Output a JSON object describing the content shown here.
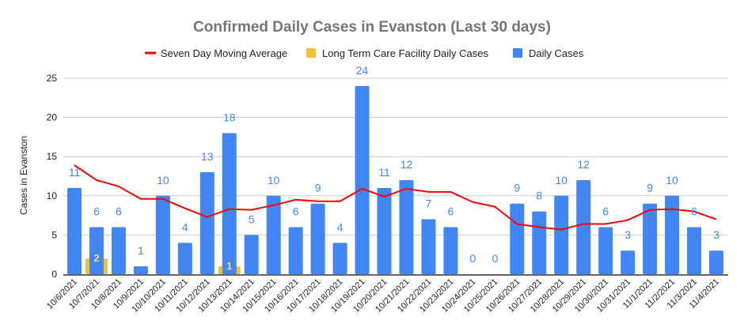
{
  "chart_data": {
    "type": "bar",
    "title": "Confirmed Daily Cases in Evanston (Last 30 days)",
    "xlabel": "",
    "ylabel": "Cases in Evanston",
    "ylim": [
      0,
      25
    ],
    "yticks": [
      "0",
      "5",
      "10",
      "15",
      "20",
      "25"
    ],
    "grid": true,
    "legend_position": "top",
    "categories": [
      "10/6/2021",
      "10/7/2021",
      "10/8/2021",
      "10/9/2021",
      "10/10/2021",
      "10/11/2021",
      "10/12/2021",
      "10/13/2021",
      "10/14/2021",
      "10/15/2021",
      "10/16/2021",
      "10/17/2021",
      "10/18/2021",
      "10/19/2021",
      "10/20/2021",
      "10/21/2021",
      "10/22/2021",
      "10/23/2021",
      "10/24/2021",
      "10/25/2021",
      "10/26/2021",
      "10/27/2021",
      "10/28/2021",
      "10/29/2021",
      "10/30/2021",
      "10/31/2021",
      "11/1/2021",
      "11/2/2021",
      "11/3/2021",
      "11/4/2021"
    ],
    "series": [
      {
        "name": "Seven Day Moving Average",
        "type": "line",
        "color": "#ff0000",
        "values": [
          13.9,
          12.0,
          11.2,
          9.6,
          9.6,
          8.4,
          7.3,
          8.3,
          8.2,
          8.8,
          9.5,
          9.3,
          9.3,
          10.9,
          9.9,
          10.9,
          10.5,
          10.5,
          9.2,
          8.6,
          6.4,
          6.0,
          5.7,
          6.4,
          6.4,
          6.9,
          8.2,
          8.3,
          8.0,
          7.0
        ]
      },
      {
        "name": "Long Term Care Facility Daily Cases",
        "type": "bar",
        "color": "#f1c232",
        "values": [
          null,
          2,
          null,
          null,
          null,
          null,
          null,
          1,
          null,
          null,
          null,
          null,
          null,
          null,
          null,
          null,
          null,
          null,
          null,
          null,
          null,
          null,
          null,
          null,
          null,
          null,
          null,
          null,
          null,
          null
        ]
      },
      {
        "name": "Daily Cases",
        "type": "bar",
        "color": "#4285f4",
        "values": [
          11,
          6,
          6,
          1,
          10,
          4,
          13,
          18,
          5,
          10,
          6,
          9,
          4,
          24,
          11,
          12,
          7,
          6,
          0,
          0,
          9,
          8,
          10,
          12,
          6,
          3,
          9,
          10,
          6,
          3
        ]
      }
    ]
  }
}
